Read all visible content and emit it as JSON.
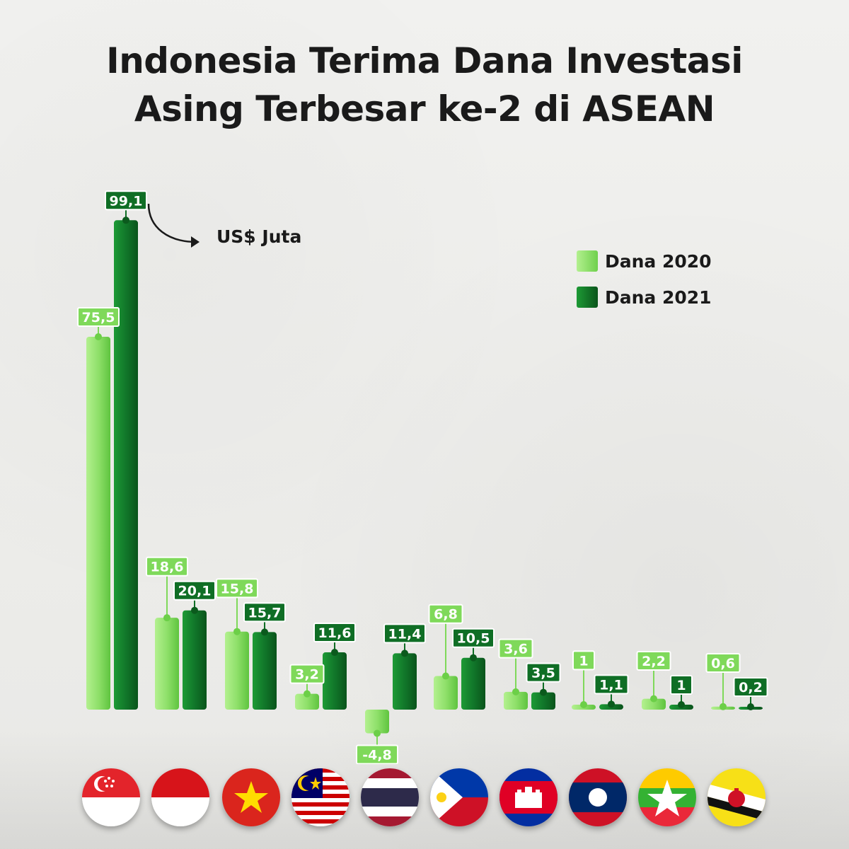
{
  "title_line1": "Indonesia Terima Dana Investasi",
  "title_line2": "Asing Terbesar ke-2 di ASEAN",
  "unit_label": "US$ Juta",
  "legend": [
    {
      "label": "Dana 2020",
      "color": "#8fe06a"
    },
    {
      "label": "Dana 2021",
      "color": "#138a2c"
    }
  ],
  "colors": {
    "series_2020_light": "#9ee87a",
    "series_2020_dark": "#58c23a",
    "series_2021_light": "#1e9a36",
    "series_2021_dark": "#0b5a1d",
    "label_bg_2020": "#7fd95a",
    "label_bg_2021": "#0f6e25"
  },
  "flags": [
    {
      "icon": "singapore-flag-icon"
    },
    {
      "icon": "indonesia-flag-icon"
    },
    {
      "icon": "vietnam-flag-icon"
    },
    {
      "icon": "malaysia-flag-icon"
    },
    {
      "icon": "thailand-flag-icon"
    },
    {
      "icon": "philippines-flag-icon"
    },
    {
      "icon": "cambodia-flag-icon"
    },
    {
      "icon": "laos-flag-icon"
    },
    {
      "icon": "myanmar-flag-icon"
    },
    {
      "icon": "brunei-flag-icon"
    }
  ],
  "chart_data": {
    "type": "bar",
    "title": "Indonesia Terima Dana Investasi Asing Terbesar ke-2 di ASEAN",
    "unit": "US$ Juta",
    "legend_position": "top-right",
    "series": [
      {
        "name": "Dana 2020",
        "values": [
          75.5,
          18.6,
          15.8,
          3.2,
          -4.8,
          6.8,
          3.6,
          1,
          2.2,
          0.6
        ],
        "labels": [
          "75,5",
          "18,6",
          "15,8",
          "3,2",
          "-4,8",
          "6,8",
          "3,6",
          "1",
          "2,2",
          "0,6"
        ]
      },
      {
        "name": "Dana 2021",
        "values": [
          99.1,
          20.1,
          15.7,
          11.6,
          11.4,
          10.5,
          3.5,
          1.1,
          1,
          0.2
        ],
        "labels": [
          "99,1",
          "20,1",
          "15,7",
          "11,6",
          "11,4",
          "10,5",
          "3,5",
          "1,1",
          "1",
          "0,2"
        ]
      }
    ]
  }
}
